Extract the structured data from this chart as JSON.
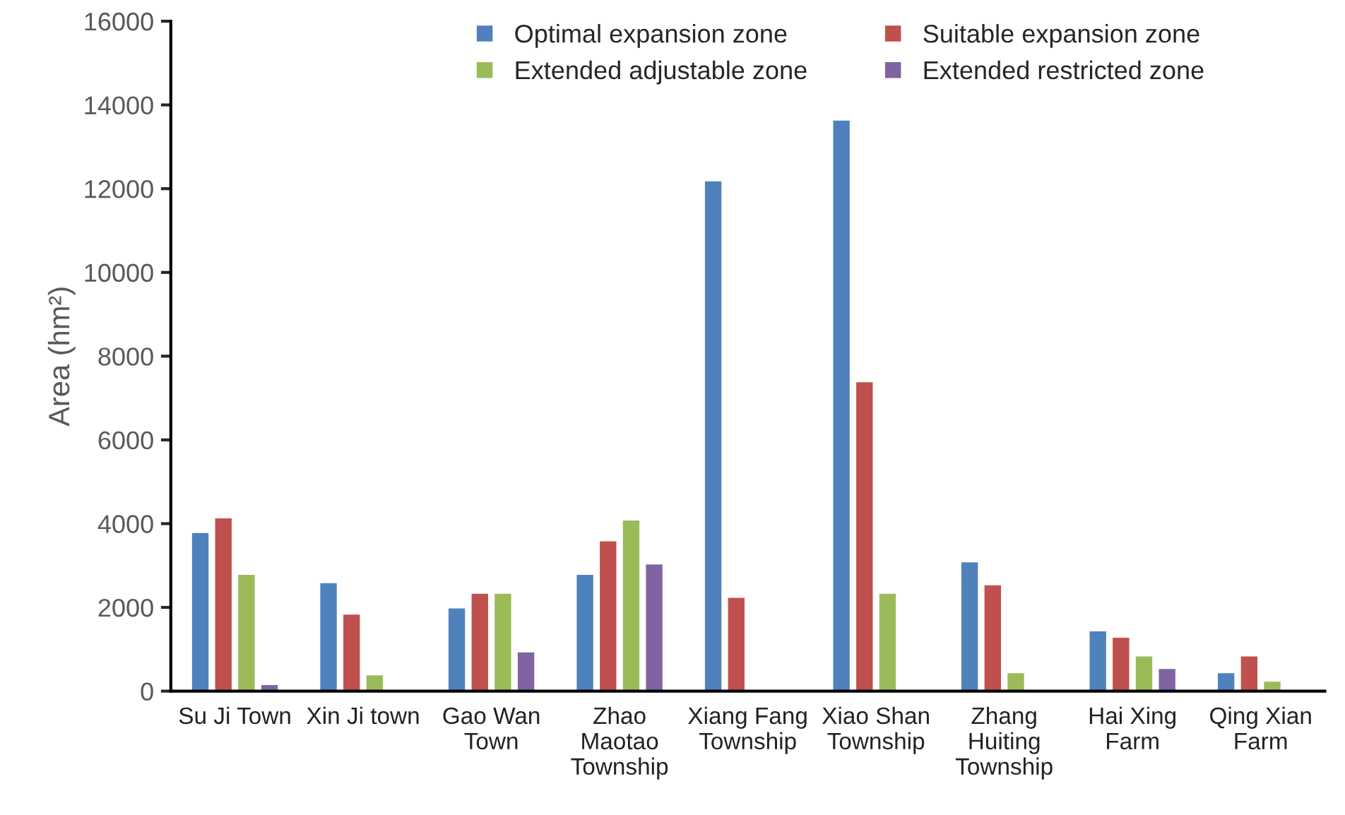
{
  "chart_data": {
    "type": "bar",
    "ylabel": "Area (hm²)",
    "categories": [
      "Su Ji Town",
      "Xin Ji town",
      "Gao Wan\nTown",
      "Zhao\nMaotao\nTownship",
      "Xiang Fang\nTownship",
      "Xiao Shan\nTownship",
      "Zhang\nHuiting\nTownship",
      "Hai Xing\nFarm",
      "Qing Xian\nFarm"
    ],
    "series": [
      {
        "name": "Optimal expansion zone",
        "color": "#4f81bd",
        "values": [
          3800,
          2600,
          2000,
          2800,
          12200,
          13650,
          3100,
          1450,
          450
        ]
      },
      {
        "name": "Suitable expansion zone",
        "color": "#c0504d",
        "values": [
          4150,
          1850,
          2350,
          3600,
          2250,
          7400,
          2550,
          1300,
          850
        ]
      },
      {
        "name": "Extended adjustable zone",
        "color": "#9bbb59",
        "values": [
          2800,
          400,
          2350,
          4100,
          50,
          2350,
          450,
          850,
          250
        ]
      },
      {
        "name": "Extended restricted zone",
        "color": "#8064a2",
        "values": [
          170,
          null,
          950,
          3050,
          null,
          50,
          null,
          550,
          null
        ]
      }
    ],
    "ylim": [
      0,
      16000
    ],
    "yticks": [
      0,
      2000,
      4000,
      6000,
      8000,
      10000,
      12000,
      14000,
      16000
    ],
    "grid": false,
    "legend": "top"
  }
}
